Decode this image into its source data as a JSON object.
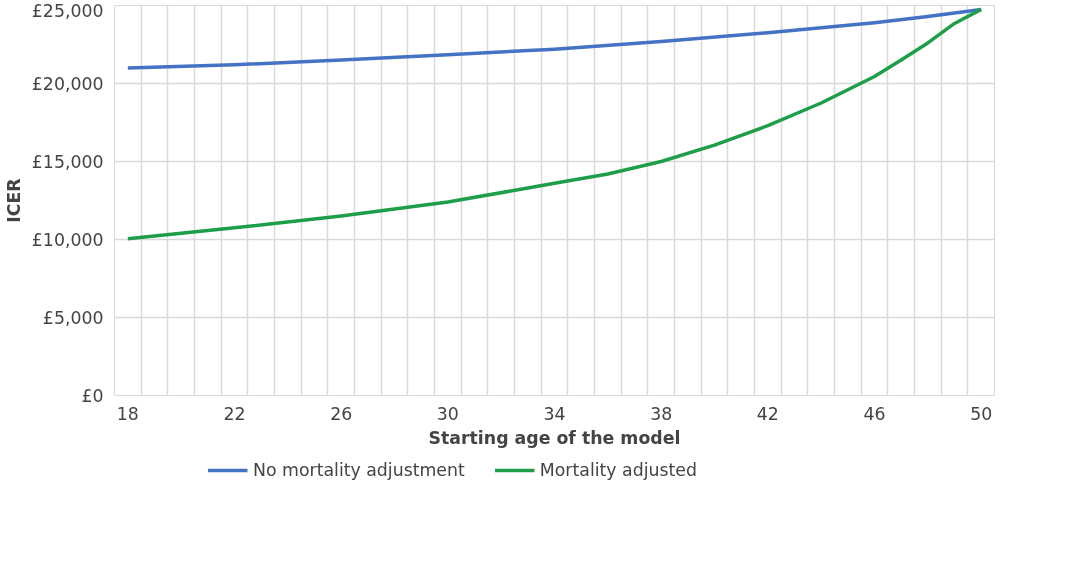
{
  "chart_data": {
    "type": "line",
    "xlabel": "Starting age of the model",
    "ylabel": "ICER",
    "xlim": [
      17.5,
      50.5
    ],
    "xticks": [
      {
        "value": 17.5,
        "label": null
      },
      {
        "value": 18.5,
        "label": null
      },
      {
        "value": 19.5,
        "label": null
      },
      {
        "value": 20.5,
        "label": null
      },
      {
        "value": 21.5,
        "label": null
      },
      {
        "value": 22.5,
        "label": null
      },
      {
        "value": 23.5,
        "label": null
      },
      {
        "value": 24.5,
        "label": null
      },
      {
        "value": 25.5,
        "label": null
      },
      {
        "value": 26.5,
        "label": null
      },
      {
        "value": 27.5,
        "label": null
      },
      {
        "value": 28.5,
        "label": null
      },
      {
        "value": 29.5,
        "label": null
      },
      {
        "value": 30.5,
        "label": null
      },
      {
        "value": 31.5,
        "label": null
      },
      {
        "value": 32.5,
        "label": null
      },
      {
        "value": 33.5,
        "label": null
      },
      {
        "value": 34.5,
        "label": null
      },
      {
        "value": 35.5,
        "label": null
      },
      {
        "value": 36.5,
        "label": null
      },
      {
        "value": 37.5,
        "label": null
      },
      {
        "value": 38.5,
        "label": null
      },
      {
        "value": 39.5,
        "label": null
      },
      {
        "value": 40.5,
        "label": null
      },
      {
        "value": 41.5,
        "label": null
      },
      {
        "value": 42.5,
        "label": null
      },
      {
        "value": 43.5,
        "label": null
      },
      {
        "value": 44.5,
        "label": null
      },
      {
        "value": 45.5,
        "label": null
      },
      {
        "value": 46.5,
        "label": null
      },
      {
        "value": 47.5,
        "label": null
      },
      {
        "value": 48.5,
        "label": null
      },
      {
        "value": 49.5,
        "label": null
      },
      {
        "value": 50.5,
        "label": null
      },
      18,
      22,
      26,
      30,
      34,
      38,
      42,
      46,
      50
    ],
    "ylim": [
      0,
      25000
    ],
    "yticks": [
      {
        "value": 0,
        "label": "£0"
      },
      {
        "value": 5000,
        "label": "£5,000"
      },
      {
        "value": 10000,
        "label": "£10,000"
      },
      {
        "value": 15000,
        "label": "£15,000"
      },
      {
        "value": 20000,
        "label": "£20,000"
      },
      {
        "value": 25000,
        "label": "£25,000"
      }
    ],
    "grid": true,
    "legend": "bottom",
    "marker": "none",
    "line_style": "solid",
    "series": [
      {
        "name": "No mortality adjustment",
        "color": "#4472c4",
        "x": [
          18,
          22,
          26,
          30,
          34,
          38,
          42,
          46,
          48,
          50
        ],
        "values": [
          21000,
          21200,
          21500,
          21850,
          22200,
          22700,
          23250,
          23900,
          24300,
          24750
        ]
      },
      {
        "name": "Mortality adjusted",
        "color": "#1e9e48",
        "x": [
          18,
          22,
          26,
          30,
          33,
          34,
          36,
          38,
          40,
          42,
          44,
          46,
          47,
          48,
          49,
          50
        ],
        "values": [
          10050,
          10750,
          11500,
          12400,
          13300,
          13600,
          14200,
          15000,
          16050,
          17300,
          18750,
          20450,
          21500,
          22600,
          23850,
          24750
        ]
      }
    ]
  }
}
